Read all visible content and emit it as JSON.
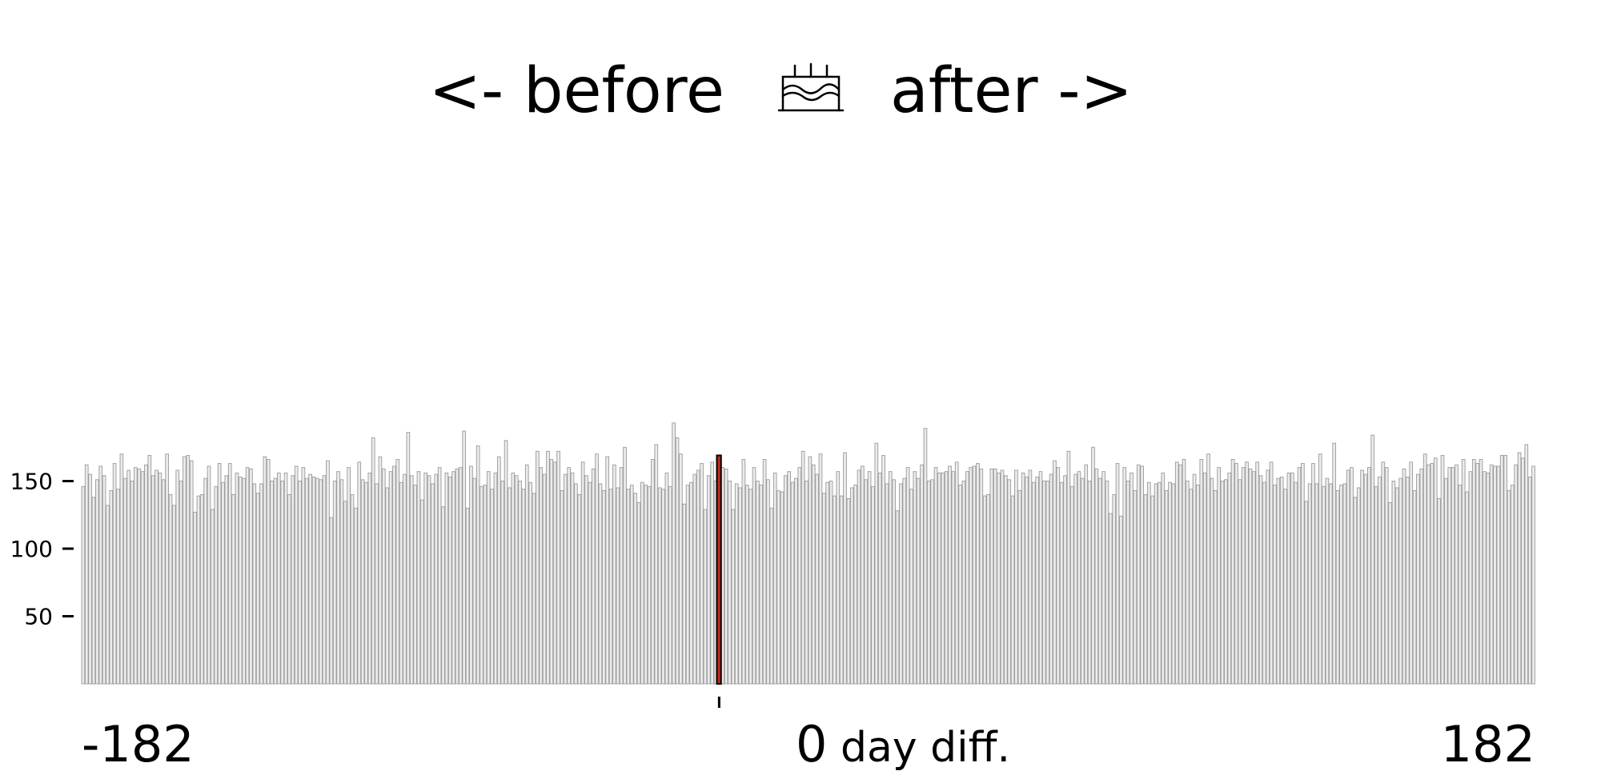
{
  "chart_data": {
    "type": "bar",
    "title_left": "<- before",
    "title_right": "after ->",
    "title_icon": "birthday-cake-icon",
    "xlabel": "day diff.",
    "x_range": [
      -182,
      182
    ],
    "x_tick_labels": [
      "-182",
      "0",
      "182"
    ],
    "y_ticks": [
      50,
      100,
      150
    ],
    "ylim": [
      0,
      195
    ],
    "grid": false,
    "highlight_x": 0,
    "colors": {
      "bar_fill": "#ebebeb",
      "bar_edge": "#9a9a9a",
      "highlight_fill": "#c42b1c",
      "highlight_edge": "#000000"
    },
    "values": [
      146,
      162,
      155,
      138,
      151,
      161,
      154,
      132,
      143,
      163,
      144,
      170,
      152,
      158,
      150,
      160,
      159,
      157,
      162,
      169,
      154,
      158,
      156,
      151,
      170,
      140,
      132,
      158,
      150,
      168,
      169,
      165,
      127,
      139,
      140,
      152,
      161,
      129,
      146,
      163,
      149,
      154,
      163,
      140,
      156,
      153,
      152,
      160,
      159,
      148,
      141,
      148,
      168,
      166,
      150,
      152,
      156,
      150,
      156,
      140,
      154,
      161,
      150,
      160,
      152,
      155,
      153,
      152,
      151,
      154,
      165,
      123,
      150,
      157,
      151,
      135,
      160,
      140,
      130,
      164,
      151,
      149,
      156,
      182,
      148,
      168,
      159,
      145,
      157,
      161,
      166,
      149,
      155,
      186,
      154,
      147,
      157,
      136,
      156,
      154,
      148,
      155,
      160,
      131,
      156,
      153,
      157,
      159,
      160,
      187,
      130,
      161,
      152,
      176,
      146,
      147,
      157,
      144,
      156,
      168,
      150,
      180,
      145,
      156,
      154,
      150,
      144,
      162,
      149,
      141,
      172,
      160,
      155,
      172,
      166,
      164,
      172,
      143,
      155,
      160,
      156,
      148,
      140,
      164,
      154,
      149,
      159,
      170,
      148,
      143,
      168,
      144,
      162,
      145,
      160,
      175,
      144,
      147,
      141,
      134,
      149,
      147,
      146,
      166,
      177,
      145,
      144,
      156,
      146,
      193,
      182,
      170,
      133,
      147,
      149,
      155,
      158,
      163,
      129,
      154,
      164,
      150,
      169,
      160,
      159,
      150,
      129,
      148,
      145,
      166,
      147,
      144,
      160,
      150,
      147,
      166,
      151,
      130,
      156,
      143,
      142,
      154,
      157,
      149,
      152,
      160,
      172,
      150,
      168,
      162,
      155,
      170,
      141,
      149,
      150,
      139,
      157,
      139,
      171,
      137,
      145,
      147,
      158,
      161,
      151,
      157,
      146,
      178,
      156,
      169,
      148,
      157,
      151,
      128,
      148,
      152,
      160,
      144,
      157,
      152,
      162,
      189,
      150,
      151,
      160,
      156,
      156,
      157,
      161,
      157,
      164,
      147,
      150,
      157,
      160,
      161,
      163,
      159,
      139,
      140,
      159,
      159,
      156,
      158,
      154,
      151,
      139,
      158,
      143,
      156,
      153,
      158,
      149,
      153,
      157,
      150,
      150,
      155,
      165,
      160,
      149,
      154,
      172,
      146,
      155,
      157,
      152,
      162,
      150,
      175,
      159,
      152,
      157,
      150,
      126,
      140,
      163,
      124,
      160,
      150,
      156,
      143,
      162,
      161,
      140,
      149,
      139,
      148,
      149,
      156,
      143,
      149,
      148,
      164,
      162,
      166,
      150,
      144,
      155,
      147,
      166,
      156,
      170,
      152,
      143,
      160,
      150,
      151,
      156,
      166,
      163,
      151,
      160,
      164,
      159,
      157,
      164,
      154,
      149,
      158,
      164,
      147,
      152,
      153,
      144,
      156,
      156,
      149,
      160,
      163,
      135,
      148,
      163,
      148,
      170,
      146,
      152,
      148,
      178,
      143,
      147,
      148,
      158,
      160,
      138,
      145,
      158,
      155,
      160,
      184,
      146,
      153,
      164,
      160,
      134,
      150,
      145,
      152,
      159,
      153,
      164,
      143,
      155,
      159,
      170,
      162,
      163,
      167,
      137,
      169,
      152,
      160,
      160,
      162,
      147,
      166,
      142,
      157,
      166,
      163,
      166,
      157,
      156,
      162,
      161,
      161,
      169,
      169,
      143,
      147,
      162,
      171,
      167,
      177,
      153,
      161
    ]
  }
}
